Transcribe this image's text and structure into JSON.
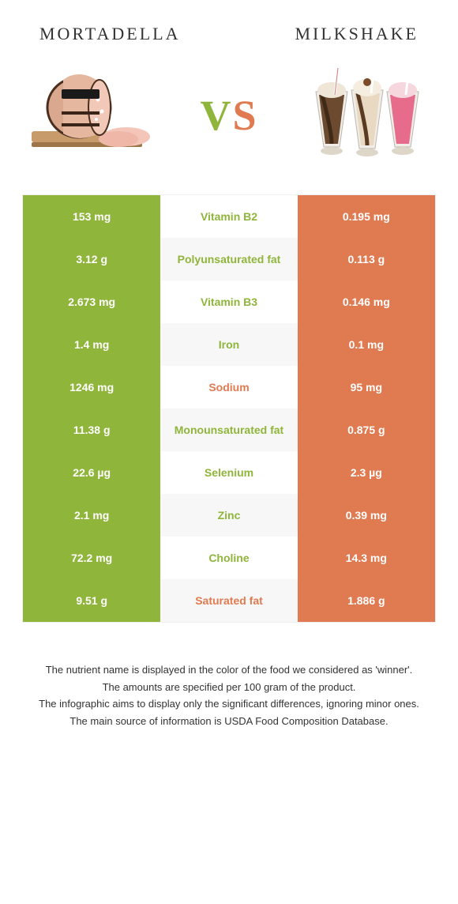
{
  "header": {
    "left_title": "Mortadella",
    "right_title": "Milkshake",
    "vs_v": "V",
    "vs_s": "S"
  },
  "colors": {
    "green": "#8fb53a",
    "orange": "#e07a50",
    "row_alt_bg": "#f7f7f7",
    "text": "#333333",
    "white": "#ffffff"
  },
  "table": {
    "rows": [
      {
        "left": "153 mg",
        "mid": "Vitamin B2",
        "right": "0.195 mg",
        "winner": "left"
      },
      {
        "left": "3.12 g",
        "mid": "Polyunsaturated fat",
        "right": "0.113 g",
        "winner": "left"
      },
      {
        "left": "2.673 mg",
        "mid": "Vitamin B3",
        "right": "0.146 mg",
        "winner": "left"
      },
      {
        "left": "1.4 mg",
        "mid": "Iron",
        "right": "0.1 mg",
        "winner": "left"
      },
      {
        "left": "1246 mg",
        "mid": "Sodium",
        "right": "95 mg",
        "winner": "right"
      },
      {
        "left": "11.38 g",
        "mid": "Monounsaturated fat",
        "right": "0.875 g",
        "winner": "left"
      },
      {
        "left": "22.6 µg",
        "mid": "Selenium",
        "right": "2.3 µg",
        "winner": "left"
      },
      {
        "left": "2.1 mg",
        "mid": "Zinc",
        "right": "0.39 mg",
        "winner": "left"
      },
      {
        "left": "72.2 mg",
        "mid": "Choline",
        "right": "14.3 mg",
        "winner": "left"
      },
      {
        "left": "9.51 g",
        "mid": "Saturated fat",
        "right": "1.886 g",
        "winner": "right"
      }
    ]
  },
  "footnote": {
    "line1": "The nutrient name is displayed in the color of the food we considered as 'winner'.",
    "line2": "The amounts are specified per 100 gram of the product.",
    "line3": "The infographic aims to display only the significant differences, ignoring minor ones.",
    "line4": "The main source of information is USDA Food Composition Database."
  }
}
